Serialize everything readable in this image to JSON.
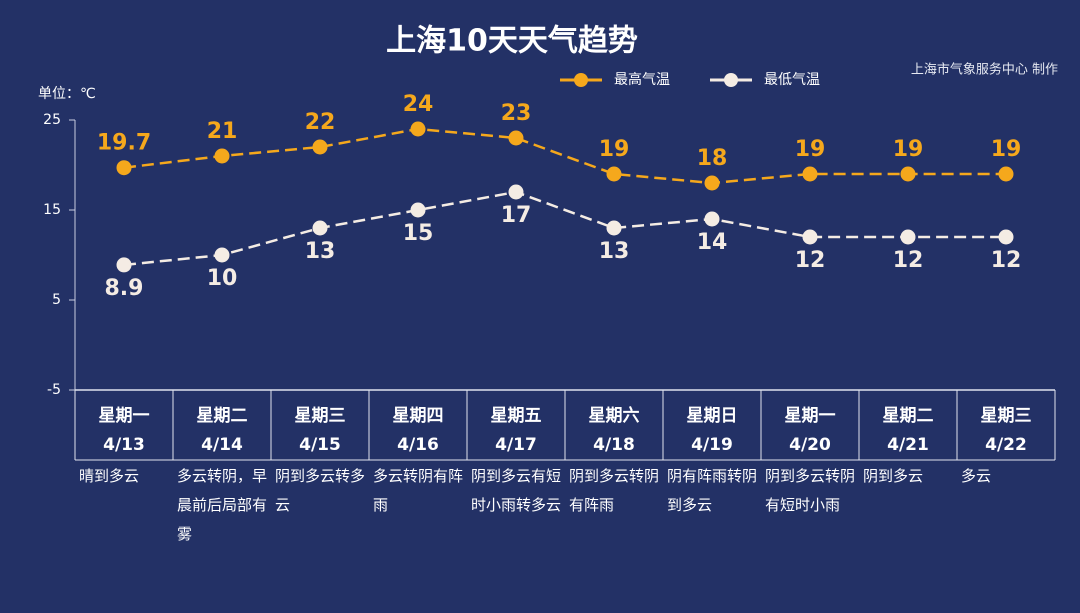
{
  "chart_data": {
    "type": "line",
    "title": "上海10天天气趋势",
    "credit": "上海市气象服务中心 制作",
    "y_unit_label": "单位：℃",
    "weekdays": [
      "星期一",
      "星期二",
      "星期三",
      "星期四",
      "星期五",
      "星期六",
      "星期日",
      "星期一",
      "星期二",
      "星期三"
    ],
    "categories": [
      "4/13",
      "4/14",
      "4/15",
      "4/16",
      "4/17",
      "4/18",
      "4/19",
      "4/20",
      "4/21",
      "4/22"
    ],
    "descriptions": [
      "晴到多云",
      "多云转阴，早晨前后局部有雾",
      "阴到多云转多云",
      "多云转阴有阵雨",
      "阴到多云有短时小雨转多云",
      "阴到多云转阴有阵雨",
      "阴有阵雨转阴到多云",
      "阴到多云转阴有短时小雨",
      "阴到多云",
      "多云"
    ],
    "series": [
      {
        "name": "最高气温",
        "color": "#f5a81c",
        "values": [
          19.7,
          21,
          22,
          24,
          23,
          19,
          18,
          19,
          19,
          19
        ]
      },
      {
        "name": "最低气温",
        "color": "#f4ece4",
        "values": [
          8.9,
          10,
          13,
          15,
          17,
          13,
          14,
          12,
          12,
          12
        ]
      }
    ],
    "ylim": [
      -5,
      25
    ],
    "yticks": [
      -5,
      5,
      15,
      25
    ]
  }
}
